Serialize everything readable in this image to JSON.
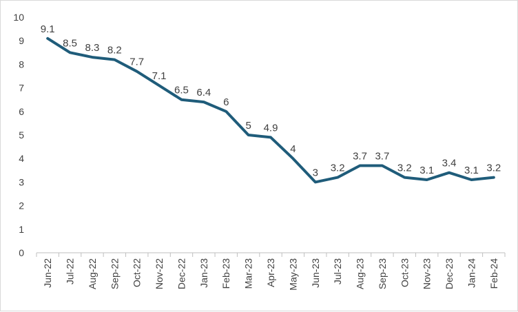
{
  "chart_data": {
    "type": "line",
    "title": "",
    "xlabel": "",
    "ylabel": "",
    "categories": [
      "Jun-22",
      "Jul-22",
      "Aug-22",
      "Sep-22",
      "Oct-22",
      "Nov-22",
      "Dec-22",
      "Jan-23",
      "Feb-23",
      "Mar-23",
      "Apr-23",
      "May-23",
      "Jun-23",
      "Jul-23",
      "Aug-23",
      "Sep-23",
      "Oct-23",
      "Nov-23",
      "Dec-23",
      "Jan-24",
      "Feb-24"
    ],
    "values": [
      9.1,
      8.5,
      8.3,
      8.2,
      7.7,
      7.1,
      6.5,
      6.4,
      6,
      5,
      4.9,
      4,
      3,
      3.2,
      3.7,
      3.7,
      3.2,
      3.1,
      3.4,
      3.1,
      3.2
    ],
    "value_labels": [
      "9.1",
      "8.5",
      "8.3",
      "8.2",
      "7.7",
      "7.1",
      "6.5",
      "6.4",
      "6",
      "5",
      "4.9",
      "4",
      "3",
      "3.2",
      "3.7",
      "3.7",
      "3.2",
      "3.1",
      "3.4",
      "3.1",
      "3.2"
    ],
    "ylim": [
      0,
      10
    ],
    "yticks": [
      "0",
      "1",
      "2",
      "3",
      "4",
      "5",
      "6",
      "7",
      "8",
      "9",
      "10"
    ],
    "grid": false,
    "legend": "none",
    "colors": {
      "line": "#1f5c7a",
      "axis": "#bfbfbf",
      "text": "#404040"
    }
  }
}
